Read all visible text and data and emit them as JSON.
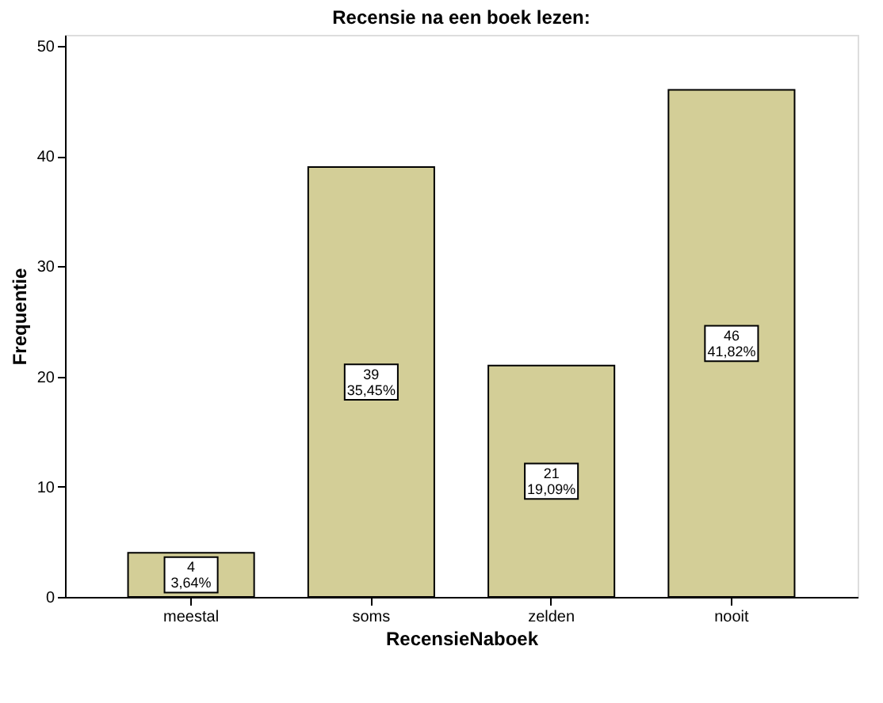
{
  "chart_data": {
    "type": "bar",
    "title": "Recensie na een boek lezen:",
    "xlabel": "RecensieNaboek",
    "ylabel": "Frequentie",
    "categories": [
      "meestal",
      "soms",
      "zelden",
      "nooit"
    ],
    "values": [
      4,
      39,
      21,
      46
    ],
    "value_labels": [
      "4\n3,64%",
      "39\n35,45%",
      "21\n19,09%",
      "46\n41,82%"
    ],
    "color": "#d3ce97",
    "ylim": [
      0,
      51
    ],
    "yticks": [
      0,
      10,
      20,
      30,
      40,
      50
    ],
    "grid": false
  }
}
